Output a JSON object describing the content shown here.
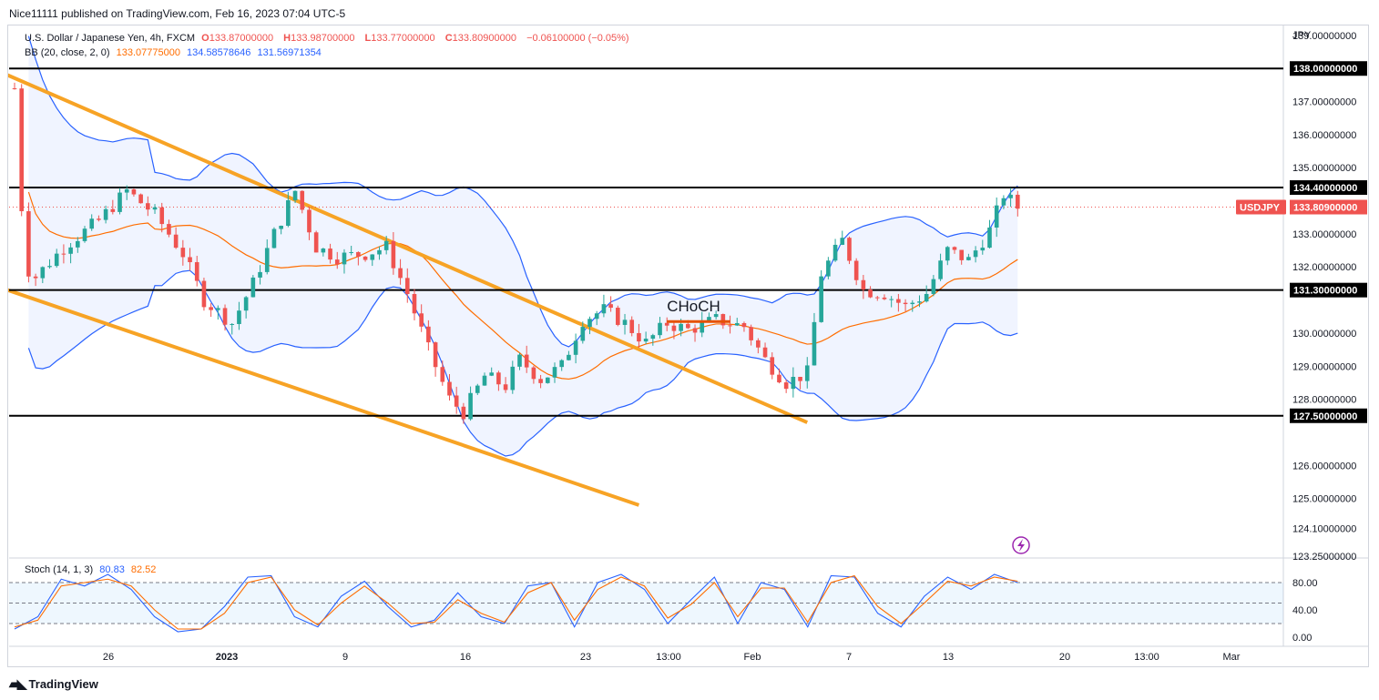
{
  "header": {
    "publisher": "Nice11111 published on TradingView.com, Feb 16, 2023 07:04 UTC-5"
  },
  "legend": {
    "symbol": "U.S. Dollar / Japanese Yen, 4h, FXCM",
    "o_label": "O",
    "o": "133.87000000",
    "h_label": "H",
    "h": "133.98700000",
    "l_label": "L",
    "l": "133.77000000",
    "c_label": "C",
    "c": "133.80900000",
    "change": "−0.06100000 (−0.05%)",
    "bb_label": "BB (20, close, 2, 0)",
    "bb_mid": "133.07775000",
    "bb_upper": "134.58578646",
    "bb_lower": "131.56971354",
    "stoch_label": "Stoch (14, 1, 3)",
    "stoch_k": "80.83",
    "stoch_d": "82.52"
  },
  "currency": "JPY",
  "annotation": "CHoCH",
  "brand": {
    "name": "TradingView"
  },
  "colors": {
    "up": "#26a69a",
    "down": "#ef5350",
    "bb": "#2962ff",
    "bb_basis": "#ff6d00",
    "trend": "#f7a325",
    "level": "#000000",
    "stoch_k": "#2962ff",
    "stoch_d": "#ff6d00",
    "last_price": "#ef5350"
  },
  "chart_data": [
    {
      "type": "candlestick",
      "title": "U.S. Dollar / Japanese Yen, 4h, FXCM",
      "y_axis": {
        "unit": "JPY",
        "tick_labels": [
          "139.00000000",
          "137.00000000",
          "136.00000000",
          "135.00000000",
          "133.00000000",
          "132.00000000",
          "130.00000000",
          "129.00000000",
          "128.00000000",
          "126.00000000",
          "125.00000000",
          "124.10000000",
          "123.25000000"
        ],
        "range": [
          123.2,
          139.3
        ]
      },
      "x_axis": {
        "tick_labels": [
          "26",
          "2023",
          "9",
          "16",
          "23",
          "13:00",
          "Feb",
          "7",
          "13",
          "20",
          "13:00",
          "Mar"
        ]
      },
      "horizontal_levels": [
        138.0,
        134.4,
        131.3,
        127.5
      ],
      "level_labels": [
        "138.00000000",
        "134.40000000",
        "131.30000000",
        "127.50000000"
      ],
      "last_price": {
        "label": "USDJPY",
        "value": "133.80900000"
      },
      "price_path": [
        {
          "x": 0,
          "close": 137.4
        },
        {
          "x": 1.5,
          "close": 132.0
        },
        {
          "x": 3,
          "close": 131.7
        },
        {
          "x": 7,
          "close": 132.6
        },
        {
          "x": 12,
          "close": 133.4
        },
        {
          "x": 16,
          "close": 134.3
        },
        {
          "x": 20,
          "close": 133.6
        },
        {
          "x": 24,
          "close": 132.4
        },
        {
          "x": 27,
          "close": 131.0
        },
        {
          "x": 31,
          "close": 130.3
        },
        {
          "x": 34,
          "close": 131.5
        },
        {
          "x": 37,
          "close": 133.0
        },
        {
          "x": 40,
          "close": 134.3
        },
        {
          "x": 43,
          "close": 132.6
        },
        {
          "x": 46,
          "close": 132.3
        },
        {
          "x": 50,
          "close": 132.4
        },
        {
          "x": 53,
          "close": 132.6
        },
        {
          "x": 56,
          "close": 131.2
        },
        {
          "x": 59,
          "close": 129.5
        },
        {
          "x": 62,
          "close": 128.0
        },
        {
          "x": 64,
          "close": 127.6
        },
        {
          "x": 67,
          "close": 128.7
        },
        {
          "x": 70,
          "close": 128.4
        },
        {
          "x": 72,
          "close": 129.2
        },
        {
          "x": 75,
          "close": 128.6
        },
        {
          "x": 78,
          "close": 129.0
        },
        {
          "x": 81,
          "close": 130.4
        },
        {
          "x": 84,
          "close": 130.7
        },
        {
          "x": 87,
          "close": 130.3
        },
        {
          "x": 90,
          "close": 129.7
        },
        {
          "x": 93,
          "close": 130.3
        },
        {
          "x": 96,
          "close": 130.1
        },
        {
          "x": 100,
          "close": 130.4
        },
        {
          "x": 104,
          "close": 130.2
        },
        {
          "x": 107,
          "close": 129.2
        },
        {
          "x": 110,
          "close": 128.5
        },
        {
          "x": 113,
          "close": 128.8
        },
        {
          "x": 115,
          "close": 131.8
        },
        {
          "x": 118,
          "close": 132.8
        },
        {
          "x": 121,
          "close": 131.3
        },
        {
          "x": 124,
          "close": 131.2
        },
        {
          "x": 127,
          "close": 130.8
        },
        {
          "x": 130,
          "close": 131.2
        },
        {
          "x": 133,
          "close": 132.5
        },
        {
          "x": 136,
          "close": 132.2
        },
        {
          "x": 139,
          "close": 133.1
        },
        {
          "x": 141,
          "close": 134.2
        },
        {
          "x": 143,
          "close": 133.8
        }
      ]
    },
    {
      "type": "line",
      "title": "Stoch (14, 1, 3)",
      "y_axis": {
        "tick_labels": [
          "80.00",
          "40.00",
          "0.00"
        ],
        "range": [
          0,
          100
        ],
        "bands": [
          80,
          50,
          20
        ]
      },
      "series": [
        {
          "name": "K",
          "values": [
            12,
            30,
            85,
            75,
            92,
            70,
            30,
            8,
            12,
            45,
            88,
            90,
            30,
            15,
            60,
            82,
            45,
            15,
            25,
            65,
            30,
            20,
            75,
            80,
            15,
            80,
            92,
            70,
            20,
            55,
            88,
            20,
            80,
            70,
            15,
            90,
            88,
            35,
            15,
            60,
            88,
            70,
            92,
            80
          ]
        },
        {
          "name": "D",
          "values": [
            15,
            25,
            75,
            80,
            85,
            75,
            40,
            12,
            12,
            35,
            80,
            88,
            40,
            18,
            50,
            75,
            50,
            20,
            22,
            55,
            35,
            22,
            65,
            80,
            25,
            70,
            88,
            75,
            28,
            48,
            80,
            30,
            72,
            72,
            22,
            80,
            90,
            45,
            20,
            50,
            82,
            75,
            88,
            82
          ]
        }
      ]
    }
  ]
}
